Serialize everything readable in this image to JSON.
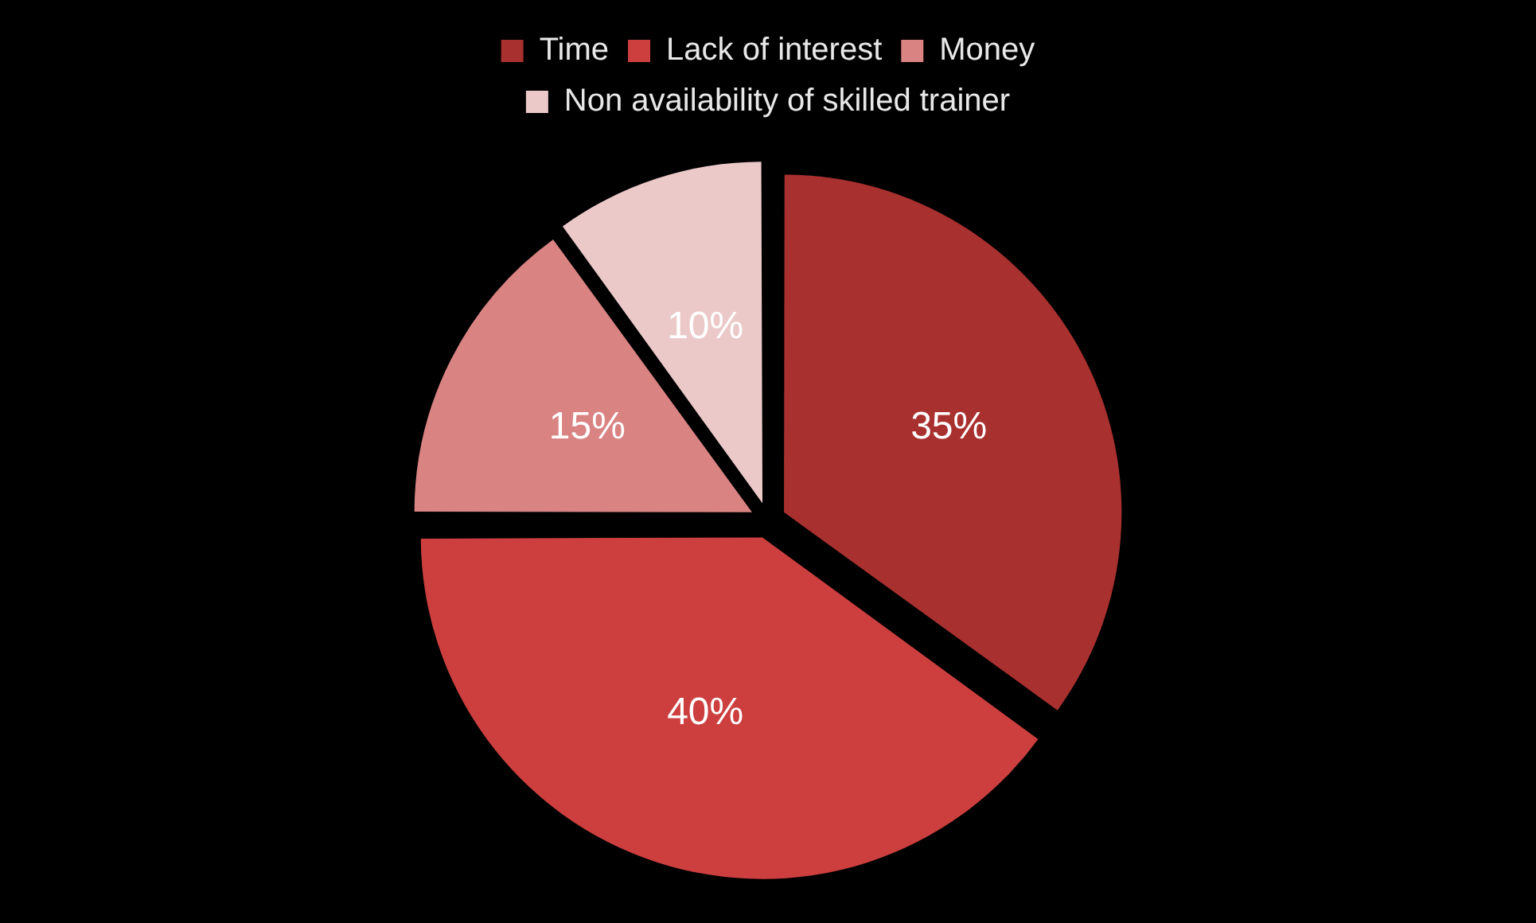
{
  "chart_data": {
    "type": "pie",
    "categories": [
      "Time",
      "Lack of interest",
      "Money",
      "Non availability of skilled trainer"
    ],
    "values": [
      35,
      40,
      15,
      10
    ],
    "colors": [
      "#a8302f",
      "#cc3f3e",
      "#d98383",
      "#ecc9c9"
    ],
    "value_labels": [
      "35%",
      "40%",
      "15%",
      "10%"
    ],
    "legend": "top"
  }
}
